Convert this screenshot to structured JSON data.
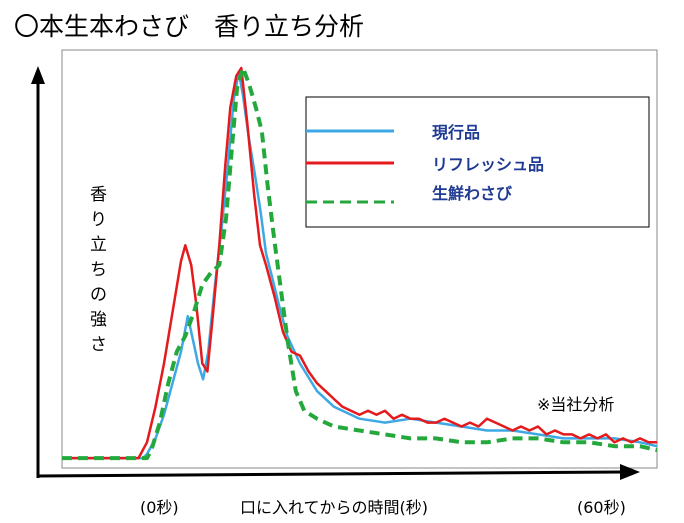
{
  "chart_data": {
    "type": "line",
    "title": "〇本生本わさび　香り立ち分析",
    "ylabel": "香り立ちの強さ",
    "xlabel": "口に入れてからの時間(秒)",
    "x_start_label": "(0秒)",
    "x_end_label": "(60秒)",
    "annotation": "※当社分析",
    "xlim": [
      -10,
      60
    ],
    "ylim": [
      0,
      100
    ],
    "grid": false,
    "legend_position": "top-right",
    "series": [
      {
        "name": "現行品",
        "color": "#3ea8e5",
        "style": "solid",
        "points": [
          [
            -10,
            1
          ],
          [
            -5,
            1
          ],
          [
            -0.5,
            1
          ],
          [
            0,
            2
          ],
          [
            1,
            6
          ],
          [
            2,
            12
          ],
          [
            3,
            20
          ],
          [
            4,
            28
          ],
          [
            4.8,
            37
          ],
          [
            5.5,
            30
          ],
          [
            6,
            25
          ],
          [
            6.6,
            21
          ],
          [
            7.2,
            28
          ],
          [
            8,
            45
          ],
          [
            8.8,
            60
          ],
          [
            9.5,
            75
          ],
          [
            10.2,
            92
          ],
          [
            10.8,
            99
          ],
          [
            11.3,
            93
          ],
          [
            12,
            82
          ],
          [
            12.7,
            73
          ],
          [
            13.4,
            63
          ],
          [
            14,
            53
          ],
          [
            14.7,
            47
          ],
          [
            15.5,
            40
          ],
          [
            16.5,
            32
          ],
          [
            18,
            25
          ],
          [
            20,
            18
          ],
          [
            22,
            14
          ],
          [
            25,
            11
          ],
          [
            28,
            10
          ],
          [
            31,
            11
          ],
          [
            34,
            10
          ],
          [
            37,
            9
          ],
          [
            40,
            8
          ],
          [
            43,
            8
          ],
          [
            46,
            7
          ],
          [
            49,
            6
          ],
          [
            52,
            6
          ],
          [
            55,
            6
          ],
          [
            58,
            5
          ],
          [
            60,
            4
          ]
        ]
      },
      {
        "name": "リフレッシュ品",
        "color": "#e41a1c",
        "style": "solid",
        "points": [
          [
            -10,
            1
          ],
          [
            -5,
            1
          ],
          [
            -1,
            1
          ],
          [
            0,
            5
          ],
          [
            1,
            14
          ],
          [
            2,
            25
          ],
          [
            3,
            38
          ],
          [
            4,
            51
          ],
          [
            4.5,
            55
          ],
          [
            5.2,
            50
          ],
          [
            5.8,
            40
          ],
          [
            6.5,
            25
          ],
          [
            7.1,
            23
          ],
          [
            7.7,
            36
          ],
          [
            8.5,
            55
          ],
          [
            9.2,
            75
          ],
          [
            9.8,
            90
          ],
          [
            10.5,
            98
          ],
          [
            11.1,
            100
          ],
          [
            11.8,
            86
          ],
          [
            12.6,
            68
          ],
          [
            13.3,
            55
          ],
          [
            14,
            50
          ],
          [
            15,
            42
          ],
          [
            16,
            33
          ],
          [
            17,
            28
          ],
          [
            18,
            27
          ],
          [
            19,
            23
          ],
          [
            20,
            20
          ],
          [
            21,
            18
          ],
          [
            22,
            16
          ],
          [
            23,
            14
          ],
          [
            24,
            13
          ],
          [
            25,
            12
          ],
          [
            26,
            13
          ],
          [
            27,
            12
          ],
          [
            28,
            13
          ],
          [
            29,
            11
          ],
          [
            30,
            12
          ],
          [
            31,
            11
          ],
          [
            32,
            11
          ],
          [
            33,
            10
          ],
          [
            34,
            10
          ],
          [
            35,
            11
          ],
          [
            36,
            10
          ],
          [
            37,
            9
          ],
          [
            38,
            10
          ],
          [
            39,
            9
          ],
          [
            40,
            11
          ],
          [
            41,
            10
          ],
          [
            42,
            9
          ],
          [
            43,
            8
          ],
          [
            44,
            9
          ],
          [
            45,
            8
          ],
          [
            46,
            9
          ],
          [
            47,
            7
          ],
          [
            48,
            8
          ],
          [
            49,
            7
          ],
          [
            50,
            7
          ],
          [
            51,
            6
          ],
          [
            52,
            7
          ],
          [
            53,
            6
          ],
          [
            54,
            7
          ],
          [
            55,
            5
          ],
          [
            56,
            6
          ],
          [
            57,
            5
          ],
          [
            58,
            6
          ],
          [
            59,
            5
          ],
          [
            60,
            5
          ]
        ]
      },
      {
        "name": "生鮮わさび",
        "color": "#24a83c",
        "style": "dashed",
        "points": [
          [
            -10,
            1
          ],
          [
            -5,
            1
          ],
          [
            0,
            1
          ],
          [
            0.5,
            3
          ],
          [
            1.5,
            10
          ],
          [
            2.5,
            20
          ],
          [
            3.5,
            28
          ],
          [
            4.5,
            32
          ],
          [
            5.5,
            38
          ],
          [
            6.5,
            45
          ],
          [
            7.5,
            48
          ],
          [
            8.5,
            50
          ],
          [
            9.3,
            62
          ],
          [
            10,
            80
          ],
          [
            10.6,
            95
          ],
          [
            11.3,
            100
          ],
          [
            12,
            96
          ],
          [
            12.8,
            90
          ],
          [
            13.5,
            84
          ],
          [
            14.2,
            70
          ],
          [
            15,
            56
          ],
          [
            15.8,
            43
          ],
          [
            16.6,
            30
          ],
          [
            17.5,
            18
          ],
          [
            18.5,
            13
          ],
          [
            20,
            11
          ],
          [
            22,
            9
          ],
          [
            25,
            8
          ],
          [
            28,
            7
          ],
          [
            31,
            6
          ],
          [
            34,
            6
          ],
          [
            37,
            5
          ],
          [
            40,
            5
          ],
          [
            43,
            6
          ],
          [
            46,
            6
          ],
          [
            49,
            5
          ],
          [
            52,
            5
          ],
          [
            55,
            4
          ],
          [
            58,
            4
          ],
          [
            60,
            3
          ]
        ]
      }
    ]
  }
}
